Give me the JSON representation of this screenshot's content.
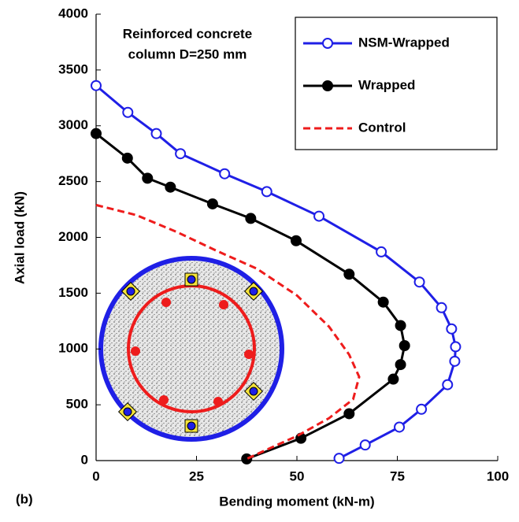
{
  "chart_data": {
    "type": "line",
    "x_label": "Bending moment (kN-m)",
    "y_label": "Axial load (kN)",
    "annotation": [
      "Reinforced concrete",
      "column D=250 mm"
    ],
    "panel_label": "(b)",
    "xlim": [
      0,
      100
    ],
    "xticks": [
      0,
      25,
      50,
      75,
      100
    ],
    "ylim": [
      0,
      4000
    ],
    "yticks": [
      0,
      500,
      1000,
      1500,
      2000,
      2500,
      3000,
      3500,
      4000
    ],
    "legend": "upper right",
    "series": [
      {
        "name": "NSM-Wrapped",
        "color": "#1f1fe6",
        "marker": "open-circle",
        "dash": false,
        "x": [
          0,
          7.9,
          15,
          21,
          32,
          42.5,
          55.5,
          71,
          80.5,
          86,
          88.5,
          89.5,
          89.3,
          87.5,
          81,
          75.5,
          67,
          60.5
        ],
        "values": [
          3360,
          3120,
          2930,
          2750,
          2570,
          2410,
          2190,
          1870,
          1600,
          1370,
          1180,
          1020,
          890,
          680,
          460,
          300,
          140,
          20
        ]
      },
      {
        "name": "Wrapped",
        "color": "#000000",
        "marker": "filled-circle",
        "dash": false,
        "x": [
          0,
          7.8,
          12.8,
          18.5,
          29,
          38.5,
          49.8,
          63,
          71.5,
          75.8,
          76.8,
          75.8,
          74,
          63,
          51,
          37.5
        ],
        "values": [
          2930,
          2710,
          2530,
          2450,
          2300,
          2170,
          1970,
          1670,
          1420,
          1210,
          1030,
          860,
          730,
          420,
          200,
          15
        ]
      },
      {
        "name": "Control",
        "color": "#ee1c1c",
        "marker": "none",
        "dash": true,
        "x": [
          0,
          10,
          20,
          30,
          40,
          50,
          58,
          63,
          65.5,
          64,
          58,
          50,
          42,
          37.5
        ],
        "values": [
          2290,
          2200,
          2050,
          1880,
          1720,
          1480,
          1200,
          950,
          750,
          550,
          380,
          220,
          90,
          15
        ]
      }
    ]
  }
}
